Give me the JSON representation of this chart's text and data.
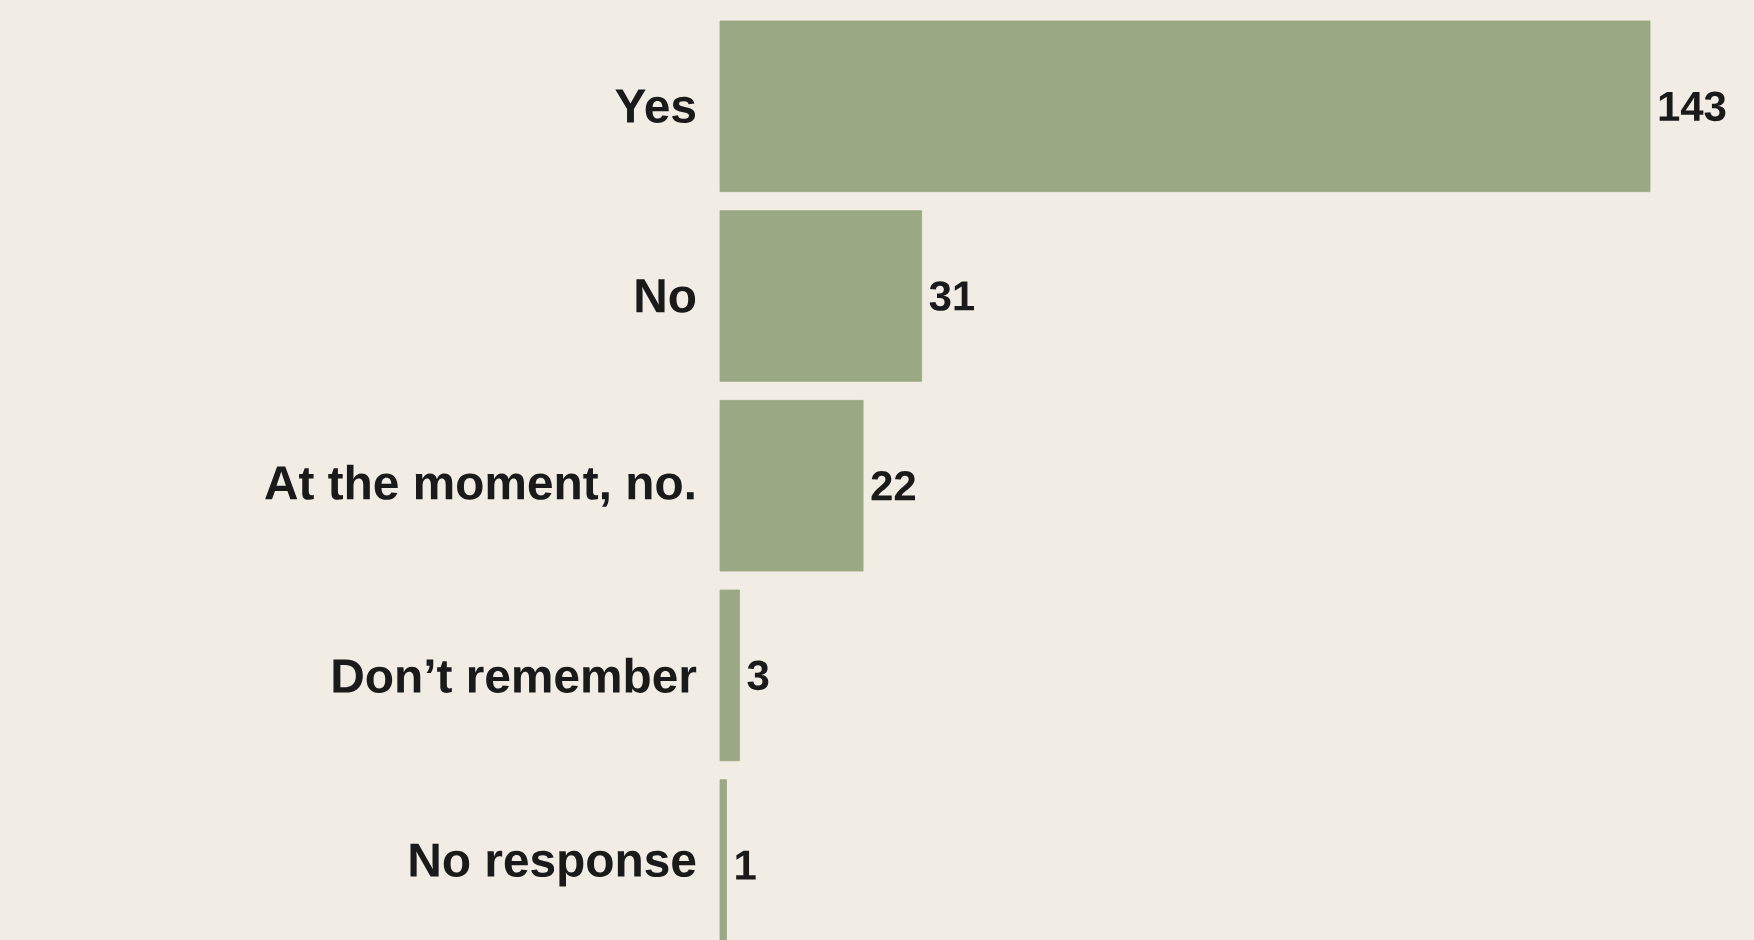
{
  "chart_data": {
    "type": "bar",
    "orientation": "horizontal",
    "categories": [
      "Yes",
      "No",
      "At the moment, no.",
      "Don’t remember",
      "No response"
    ],
    "values": [
      143,
      31,
      22,
      3,
      1
    ],
    "color": "#9aa883",
    "data_labels": true
  }
}
